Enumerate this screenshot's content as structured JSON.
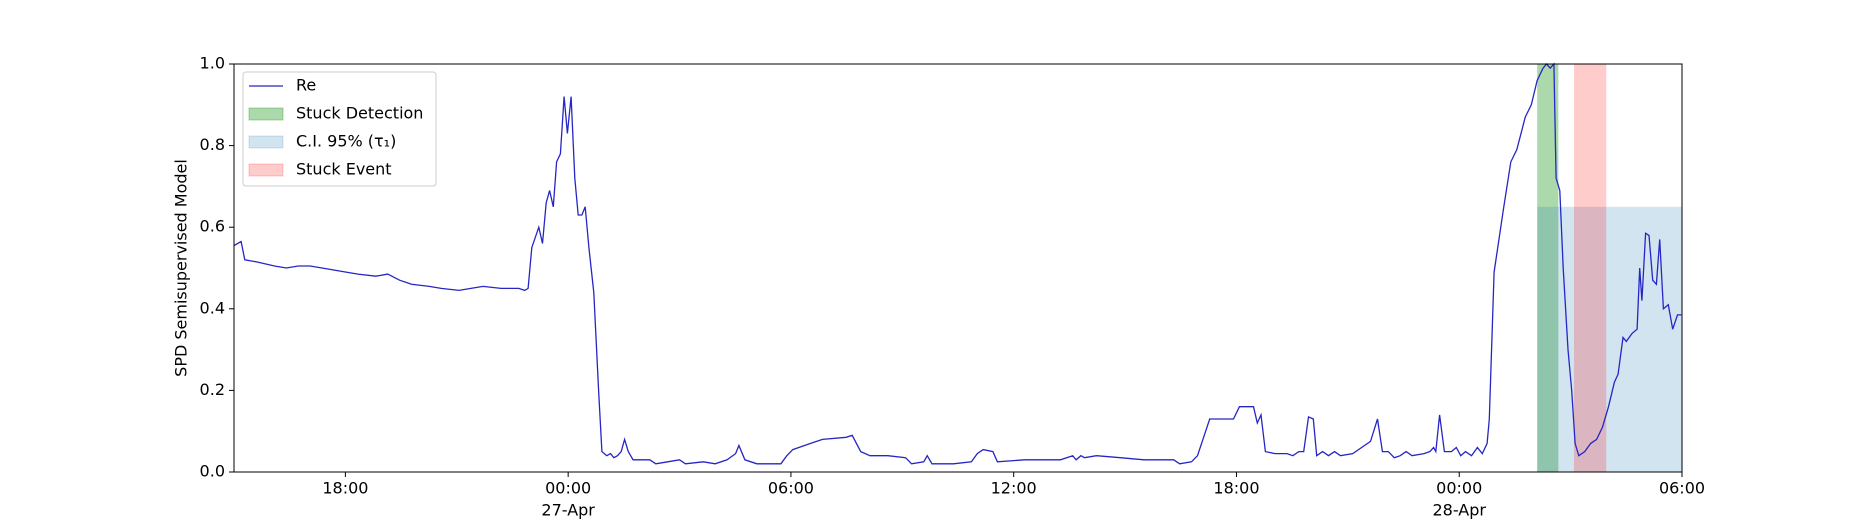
{
  "chart_data": {
    "type": "line",
    "ylabel": "SPD Semisupervised Model",
    "xlim": [
      0,
      39
    ],
    "ylim": [
      0,
      1
    ],
    "xticks": [
      {
        "value": 3,
        "label": "18:00"
      },
      {
        "value": 9,
        "label": "00:00",
        "sublabel": "27-Apr"
      },
      {
        "value": 15,
        "label": "06:00"
      },
      {
        "value": 21,
        "label": "12:00"
      },
      {
        "value": 27,
        "label": "18:00"
      },
      {
        "value": 33,
        "label": "00:00",
        "sublabel": "28-Apr"
      },
      {
        "value": 39,
        "label": "06:00"
      }
    ],
    "yticks": [
      {
        "value": 0,
        "label": "0.0"
      },
      0.2,
      0.4,
      0.6,
      0.8,
      {
        "value": 1,
        "label": "1.0"
      }
    ],
    "legend": "upper left",
    "series": [
      {
        "name": "Re",
        "color": "#2626c4",
        "x": [
          0,
          0.19,
          0.29,
          0.61,
          1.09,
          1.41,
          1.73,
          2.05,
          2.37,
          3.02,
          3.34,
          3.82,
          4.14,
          4.46,
          4.78,
          5.26,
          5.58,
          6.06,
          6.38,
          6.71,
          7.19,
          7.67,
          7.83,
          7.92,
          8.02,
          8.21,
          8.31,
          8.41,
          8.5,
          8.6,
          8.69,
          8.79,
          8.89,
          8.98,
          9.08,
          9.18,
          9.27,
          9.37,
          9.46,
          9.56,
          9.69,
          9.82,
          9.91,
          10.04,
          10.14,
          10.23,
          10.33,
          10.43,
          10.52,
          10.62,
          10.75,
          11.04,
          11.2,
          11.36,
          11.68,
          12,
          12.16,
          12.64,
          12.96,
          13.28,
          13.51,
          13.6,
          13.76,
          14.08,
          14.4,
          14.73,
          14.89,
          15.05,
          15.53,
          15.85,
          16.49,
          16.65,
          16.88,
          17.13,
          17.61,
          18.09,
          18.25,
          18.58,
          18.67,
          18.8,
          19.38,
          19.86,
          20.02,
          20.18,
          20.44,
          20.56,
          21.3,
          22.26,
          22.59,
          22.68,
          22.81,
          22.91,
          23.23,
          23.87,
          24.51,
          25.31,
          25.47,
          25.79,
          25.95,
          26.28,
          26.76,
          26.92,
          27.08,
          27.46,
          27.56,
          27.66,
          27.78,
          28.04,
          28.36,
          28.52,
          28.68,
          28.81,
          28.94,
          29.07,
          29.16,
          29.32,
          29.48,
          29.64,
          29.8,
          30.13,
          30.61,
          30.8,
          30.93,
          31.09,
          31.25,
          31.41,
          31.57,
          31.73,
          32.05,
          32.21,
          32.31,
          32.37,
          32.47,
          32.6,
          32.79,
          32.92,
          33.04,
          33.17,
          33.33,
          33.49,
          33.62,
          33.75,
          33.81,
          33.94,
          34.2,
          34.39,
          34.55,
          34.78,
          34.94,
          35.1,
          35.26,
          35.35,
          35.45,
          35.55,
          35.61,
          35.71,
          35.8,
          35.93,
          36.03,
          36.12,
          36.22,
          36.38,
          36.54,
          36.7,
          36.86,
          37.02,
          37.18,
          37.28,
          37.41,
          37.5,
          37.66,
          37.79,
          37.86,
          37.92,
          38.02,
          38.11,
          38.21,
          38.31,
          38.4,
          38.5,
          38.63,
          38.75,
          38.88,
          38.98
        ],
        "values": [
          0.555,
          0.565,
          0.52,
          0.515,
          0.505,
          0.5,
          0.505,
          0.505,
          0.5,
          0.49,
          0.485,
          0.48,
          0.485,
          0.47,
          0.46,
          0.455,
          0.45,
          0.445,
          0.45,
          0.455,
          0.45,
          0.45,
          0.445,
          0.45,
          0.55,
          0.6,
          0.56,
          0.66,
          0.69,
          0.65,
          0.76,
          0.78,
          0.92,
          0.83,
          0.92,
          0.72,
          0.63,
          0.63,
          0.65,
          0.55,
          0.44,
          0.2,
          0.05,
          0.04,
          0.045,
          0.035,
          0.04,
          0.05,
          0.08,
          0.05,
          0.03,
          0.03,
          0.03,
          0.02,
          0.025,
          0.03,
          0.02,
          0.025,
          0.02,
          0.03,
          0.045,
          0.065,
          0.03,
          0.02,
          0.02,
          0.02,
          0.04,
          0.055,
          0.07,
          0.08,
          0.085,
          0.09,
          0.05,
          0.04,
          0.04,
          0.035,
          0.02,
          0.025,
          0.04,
          0.02,
          0.02,
          0.025,
          0.045,
          0.055,
          0.05,
          0.025,
          0.03,
          0.03,
          0.04,
          0.03,
          0.04,
          0.035,
          0.04,
          0.035,
          0.03,
          0.03,
          0.02,
          0.025,
          0.04,
          0.13,
          0.13,
          0.13,
          0.16,
          0.16,
          0.12,
          0.14,
          0.05,
          0.045,
          0.045,
          0.04,
          0.05,
          0.05,
          0.135,
          0.13,
          0.04,
          0.05,
          0.04,
          0.05,
          0.04,
          0.045,
          0.075,
          0.13,
          0.05,
          0.05,
          0.035,
          0.04,
          0.05,
          0.04,
          0.045,
          0.05,
          0.06,
          0.05,
          0.14,
          0.05,
          0.05,
          0.06,
          0.04,
          0.05,
          0.04,
          0.06,
          0.045,
          0.07,
          0.13,
          0.49,
          0.65,
          0.76,
          0.79,
          0.87,
          0.9,
          0.96,
          0.99,
          1.0,
          0.99,
          1.0,
          0.72,
          0.69,
          0.5,
          0.3,
          0.2,
          0.07,
          0.04,
          0.05,
          0.07,
          0.08,
          0.11,
          0.16,
          0.22,
          0.24,
          0.33,
          0.32,
          0.34,
          0.35,
          0.5,
          0.42,
          0.585,
          0.58,
          0.47,
          0.46,
          0.57,
          0.4,
          0.41,
          0.35,
          0.385,
          0.385
        ]
      }
    ],
    "spans": [
      {
        "name": "Stuck Detection",
        "color": "#2ca02c",
        "opacity": 0.4,
        "x": [
          35.1,
          35.67
        ],
        "y": [
          0,
          1
        ]
      },
      {
        "name": "C.I. 95% (τ₁)",
        "color": "#1f77b4",
        "opacity": 0.2,
        "x": [
          35.1,
          39
        ],
        "y": [
          0,
          0.65
        ]
      },
      {
        "name": "Stuck Event",
        "color": "#ff0000",
        "opacity": 0.2,
        "x": [
          36.09,
          36.96
        ],
        "y": [
          0,
          1
        ]
      }
    ]
  }
}
